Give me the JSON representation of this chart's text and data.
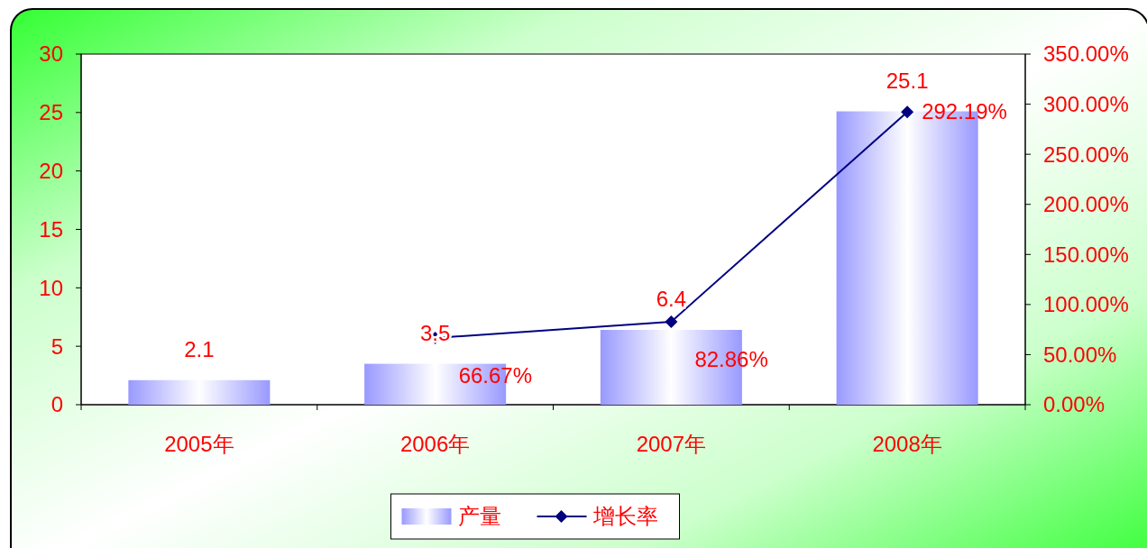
{
  "chart_data": {
    "type": "bar",
    "categories": [
      "2005年",
      "2006年",
      "2007年",
      "2008年"
    ],
    "series": [
      {
        "name": "产量",
        "color": "#9999ff",
        "values": [
          2.1,
          3.5,
          6.4,
          25.1
        ],
        "value_labels": [
          "2.1",
          "3.5",
          "6.4",
          "25.1"
        ]
      },
      {
        "name": "增长率",
        "type": "line",
        "axis": "y2",
        "color": "#000080",
        "values": [
          null,
          66.67,
          82.86,
          292.19
        ],
        "value_labels": [
          null,
          "66.67%",
          "82.86%",
          "292.19%"
        ],
        "marker": "diamond"
      }
    ],
    "ylim": [
      0,
      30
    ],
    "yticks": [
      0,
      5,
      10,
      15,
      20,
      25,
      30
    ],
    "y2lim": [
      0,
      350
    ],
    "y2ticks": [
      {
        "value": 0,
        "label": "0.00%"
      },
      {
        "value": 50,
        "label": "50.00%"
      },
      {
        "value": 100,
        "label": "100.00%"
      },
      {
        "value": 150,
        "label": "150.00%"
      },
      {
        "value": 200,
        "label": "200.00%"
      },
      {
        "value": 250,
        "label": "250.00%"
      },
      {
        "value": 300,
        "label": "300.00%"
      },
      {
        "value": 350,
        "label": "350.00%"
      }
    ],
    "grid": false,
    "legend": "bottom"
  }
}
